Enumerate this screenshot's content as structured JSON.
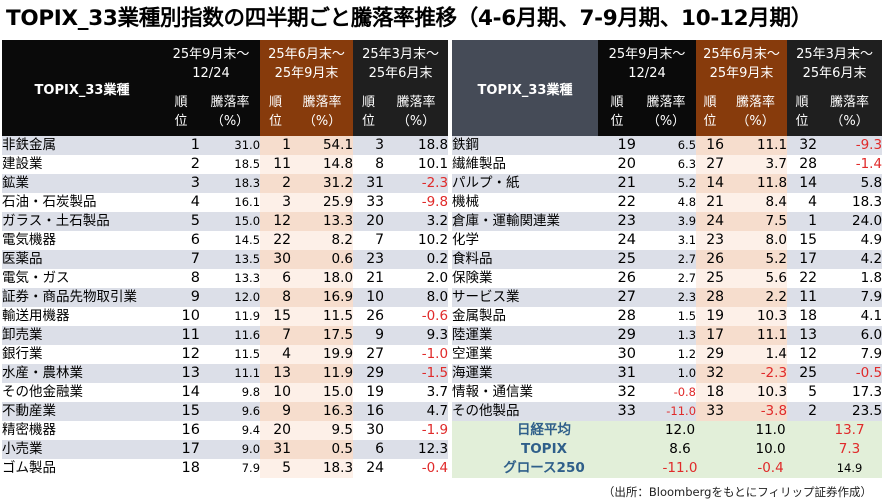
{
  "title": "TOPIX_33業種別指数の四半期ごと騰落率推移（4-6月期、7-9月期、10-12月期）",
  "header": {
    "name_col": "TOPIX_33業種",
    "periods": [
      {
        "line1": "25年9月末～",
        "line2": "12/24"
      },
      {
        "line1": "25年6月末～",
        "line2": "25年9月末"
      },
      {
        "line1": "25年3月末～",
        "line2": "25年6月末"
      }
    ],
    "rank_label": [
      "順",
      "位"
    ],
    "pct_label": [
      "騰落率",
      "（%）"
    ]
  },
  "colors": {
    "header_black": "#0a0a0a",
    "header_brown": "#873b0c",
    "header_slate": "#454b57",
    "row_band": "#dcdfe8",
    "mid_band": "#f6ddcd",
    "negative": "#e02a2a",
    "index_band": "#e2efd9",
    "index_text": "#2f5f8a"
  },
  "chart_data": {
    "type": "table",
    "columns": [
      "TOPIX_33業種",
      "25年9月末～12/24 順位",
      "25年9月末～12/24 騰落率（%）",
      "25年6月末～25年9月末 順位",
      "25年6月末～25年9月末 騰落率（%）",
      "25年3月末～25年6月末 順位",
      "25年3月末～25年6月末 騰落率（%）"
    ],
    "rows": [
      [
        "非鉄金属",
        "1",
        "31.0",
        "1",
        "54.1",
        "3",
        "18.8"
      ],
      [
        "建設業",
        "2",
        "18.5",
        "11",
        "14.8",
        "8",
        "10.1"
      ],
      [
        "鉱業",
        "3",
        "18.3",
        "2",
        "31.2",
        "31",
        "-2.3"
      ],
      [
        "石油・石炭製品",
        "4",
        "16.1",
        "3",
        "25.9",
        "33",
        "-9.8"
      ],
      [
        "ガラス・土石製品",
        "5",
        "15.0",
        "12",
        "13.3",
        "20",
        "3.2"
      ],
      [
        "電気機器",
        "6",
        "14.5",
        "22",
        "8.2",
        "7",
        "10.2"
      ],
      [
        "医薬品",
        "7",
        "13.5",
        "30",
        "0.6",
        "23",
        "0.2"
      ],
      [
        "電気・ガス",
        "8",
        "13.3",
        "6",
        "18.0",
        "21",
        "2.0"
      ],
      [
        "証券・商品先物取引業",
        "9",
        "12.0",
        "8",
        "16.9",
        "10",
        "8.0"
      ],
      [
        "輸送用機器",
        "10",
        "11.9",
        "15",
        "11.5",
        "26",
        "-0.6"
      ],
      [
        "卸売業",
        "11",
        "11.6",
        "7",
        "17.5",
        "9",
        "9.3"
      ],
      [
        "銀行業",
        "12",
        "11.5",
        "4",
        "19.9",
        "27",
        "-1.0"
      ],
      [
        "水産・農林業",
        "13",
        "11.1",
        "13",
        "11.9",
        "29",
        "-1.5"
      ],
      [
        "その他金融業",
        "14",
        "9.8",
        "10",
        "15.0",
        "19",
        "3.7"
      ],
      [
        "不動産業",
        "15",
        "9.6",
        "9",
        "16.3",
        "16",
        "4.7"
      ],
      [
        "精密機器",
        "16",
        "9.4",
        "20",
        "9.5",
        "30",
        "-1.9"
      ],
      [
        "小売業",
        "17",
        "9.0",
        "31",
        "0.5",
        "6",
        "12.3"
      ],
      [
        "ゴム製品",
        "18",
        "7.9",
        "5",
        "18.3",
        "24",
        "-0.4"
      ],
      [
        "鉄鋼",
        "19",
        "6.5",
        "16",
        "11.1",
        "32",
        "-9.3"
      ],
      [
        "繊維製品",
        "20",
        "6.3",
        "27",
        "3.7",
        "28",
        "-1.4"
      ],
      [
        "パルプ・紙",
        "21",
        "5.2",
        "14",
        "11.8",
        "14",
        "5.8"
      ],
      [
        "機械",
        "22",
        "4.8",
        "21",
        "8.4",
        "4",
        "18.3"
      ],
      [
        "倉庫・運輸関連業",
        "23",
        "3.9",
        "24",
        "7.5",
        "1",
        "24.0"
      ],
      [
        "化学",
        "24",
        "3.1",
        "23",
        "8.0",
        "15",
        "4.9"
      ],
      [
        "食料品",
        "25",
        "2.7",
        "26",
        "5.2",
        "17",
        "4.2"
      ],
      [
        "保険業",
        "26",
        "2.7",
        "25",
        "5.6",
        "22",
        "1.8"
      ],
      [
        "サービス業",
        "27",
        "2.3",
        "28",
        "2.2",
        "11",
        "7.9"
      ],
      [
        "金属製品",
        "28",
        "1.5",
        "19",
        "10.3",
        "18",
        "4.1"
      ],
      [
        "陸運業",
        "29",
        "1.3",
        "17",
        "11.1",
        "13",
        "6.0"
      ],
      [
        "空運業",
        "30",
        "1.2",
        "29",
        "1.4",
        "12",
        "7.9"
      ],
      [
        "海運業",
        "31",
        "1.0",
        "32",
        "-2.3",
        "25",
        "-0.5"
      ],
      [
        "情報・通信業",
        "32",
        "-0.8",
        "18",
        "10.3",
        "5",
        "17.3"
      ],
      [
        "その他製品",
        "33",
        "-11.0",
        "33",
        "-3.8",
        "2",
        "23.5"
      ]
    ],
    "indices": [
      [
        "日経平均",
        "12.0",
        "11.0",
        "13.7"
      ],
      [
        "TOPIX",
        "8.6",
        "10.0",
        "7.3"
      ],
      [
        "グロース250",
        "-11.0",
        "-0.4",
        "14.9"
      ]
    ]
  },
  "source": "（出所：Bloombergをもとにフィリップ証券作成）"
}
